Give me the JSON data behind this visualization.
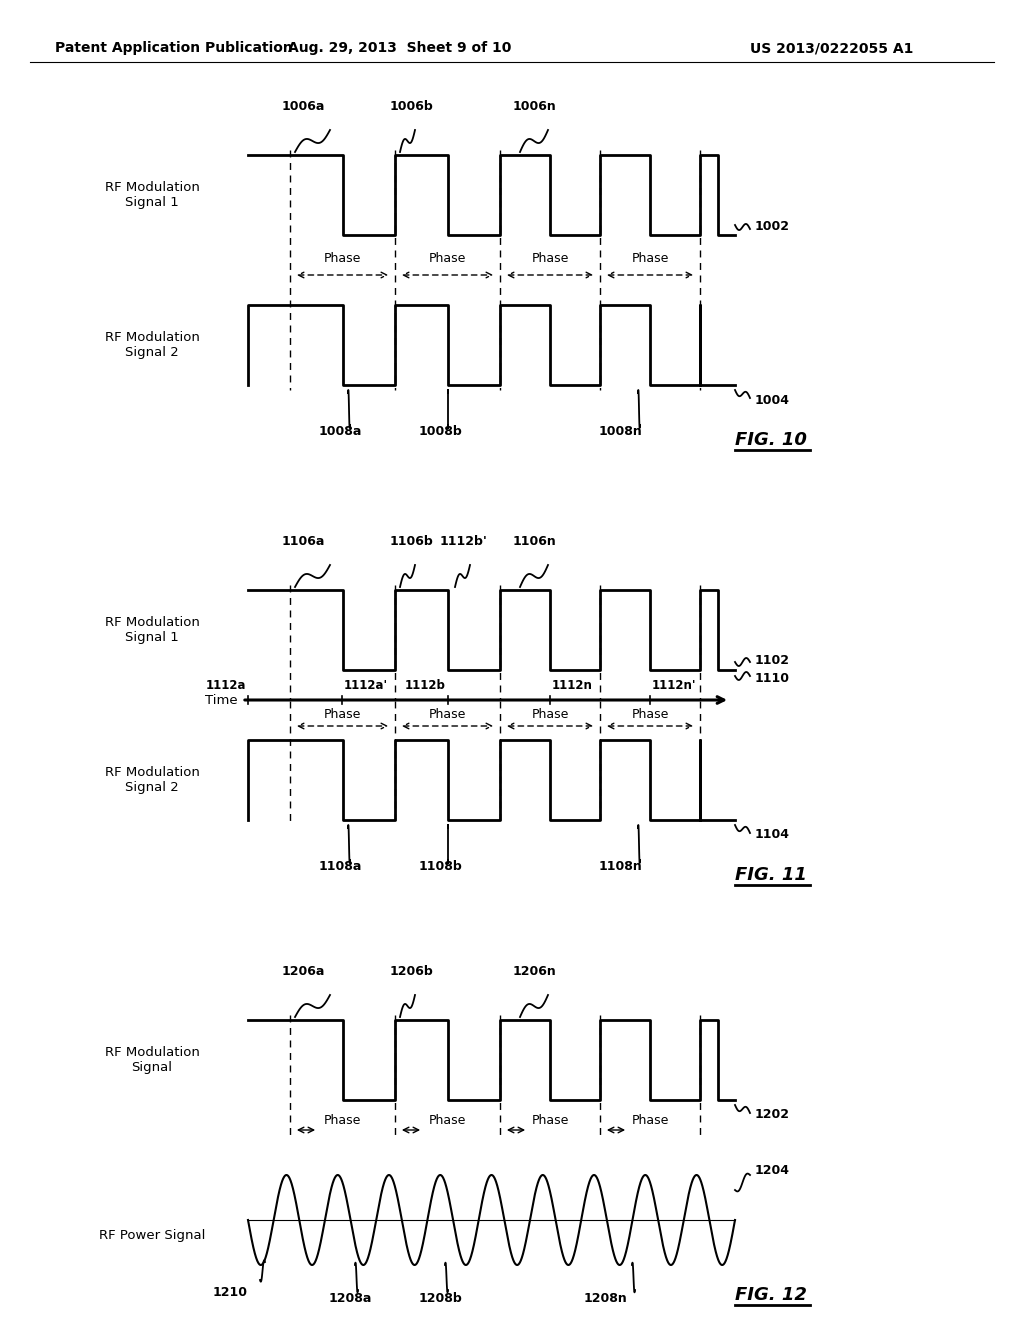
{
  "header_left": "Patent Application Publication",
  "header_center": "Aug. 29, 2013  Sheet 9 of 10",
  "header_right": "US 2013/0222055 A1",
  "bg_color": "#ffffff",
  "line_color": "#000000",
  "fig10": {
    "label": "FIG. 10",
    "sig1_label": "RF Modulation\nSignal 1",
    "sig2_label": "RF Modulation\nSignal 2",
    "ref_1002": "1002",
    "ref_1004": "1004",
    "ref_1006a": "1006a",
    "ref_1006b": "1006b",
    "ref_1006n": "1006n",
    "ref_1008a": "1008a",
    "ref_1008b": "1008b",
    "ref_1008n": "1008n",
    "phase_label": "Phase"
  },
  "fig11": {
    "label": "FIG. 11",
    "sig1_label": "RF Modulation\nSignal 1",
    "sig2_label": "RF Modulation\nSignal 2",
    "ref_1102": "1102",
    "ref_1104": "1104",
    "ref_1110": "1110",
    "ref_1106a": "1106a",
    "ref_1106b": "1106b",
    "ref_1106n": "1106n",
    "ref_1108a": "1108a",
    "ref_1108b": "1108b",
    "ref_1108n": "1108n",
    "ref_1112a": "1112a",
    "ref_1112ap": "1112a'",
    "ref_1112bp": "1112b'",
    "ref_1112b": "–1112b",
    "ref_1112n": "1112n",
    "ref_1112np": "1112n'",
    "time_label": "Time",
    "phase_label": "Phase"
  },
  "fig12": {
    "label": "FIG. 12",
    "sig_label": "RF Modulation\nSignal",
    "pow_label": "RF Power Signal",
    "ref_1202": "1202",
    "ref_1204": "1204",
    "ref_1210": "1210",
    "ref_1206a": "1206a",
    "ref_1206b": "1206b",
    "ref_1206n": "1206n",
    "ref_1208a": "1208a",
    "ref_1208b": "1208b",
    "ref_1208n": "1208n",
    "phase_label": "Phase"
  }
}
